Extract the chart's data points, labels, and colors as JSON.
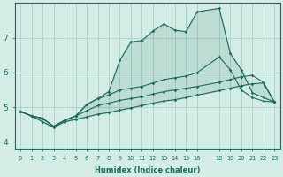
{
  "xlabel": "Humidex (Indice chaleur)",
  "ylabel": "",
  "bg_color": "#d4ece6",
  "grid_color": "#aacfc7",
  "line_color": "#1a6b5a",
  "xlim": [
    -0.5,
    23.5
  ],
  "ylim": [
    3.8,
    8.0
  ],
  "xticks": [
    0,
    1,
    2,
    3,
    4,
    5,
    6,
    7,
    8,
    9,
    10,
    11,
    12,
    13,
    14,
    15,
    16,
    18,
    19,
    20,
    21,
    22,
    23
  ],
  "yticks": [
    4,
    5,
    6,
    7
  ],
  "line_top_x": [
    0,
    1,
    2,
    3,
    4,
    5,
    6,
    7,
    8,
    9,
    10,
    11,
    12,
    13,
    14,
    15,
    16,
    18,
    19,
    20,
    21,
    22,
    23
  ],
  "line_top_y": [
    4.88,
    4.75,
    4.68,
    4.45,
    4.62,
    4.75,
    5.08,
    5.25,
    5.45,
    6.35,
    6.88,
    6.92,
    7.2,
    7.4,
    7.22,
    7.18,
    7.75,
    7.85,
    6.55,
    6.08,
    5.42,
    5.28,
    5.15
  ],
  "line_mid1_x": [
    0,
    1,
    2,
    3,
    4,
    5,
    6,
    7,
    8,
    9,
    10,
    11,
    12,
    13,
    14,
    15,
    16,
    18,
    19,
    20,
    21,
    22,
    23
  ],
  "line_mid1_y": [
    4.88,
    4.75,
    4.68,
    4.45,
    4.62,
    4.75,
    5.08,
    5.25,
    5.35,
    5.5,
    5.55,
    5.6,
    5.7,
    5.8,
    5.85,
    5.9,
    6.0,
    6.45,
    6.08,
    5.5,
    5.28,
    5.18,
    5.15
  ],
  "line_mid2_x": [
    0,
    1,
    2,
    3,
    4,
    5,
    6,
    7,
    8,
    9,
    10,
    11,
    12,
    13,
    14,
    15,
    16,
    18,
    19,
    20,
    21,
    22,
    23
  ],
  "line_mid2_y": [
    4.88,
    4.75,
    4.68,
    4.45,
    4.62,
    4.75,
    4.9,
    5.05,
    5.12,
    5.2,
    5.25,
    5.3,
    5.38,
    5.45,
    5.5,
    5.55,
    5.6,
    5.72,
    5.8,
    5.88,
    5.92,
    5.72,
    5.15
  ],
  "line_bot_x": [
    0,
    1,
    2,
    3,
    4,
    5,
    6,
    7,
    8,
    9,
    10,
    11,
    12,
    13,
    14,
    15,
    16,
    18,
    19,
    20,
    21,
    22,
    23
  ],
  "line_bot_y": [
    4.88,
    4.75,
    4.58,
    4.42,
    4.58,
    4.65,
    4.72,
    4.8,
    4.85,
    4.92,
    4.98,
    5.05,
    5.12,
    5.18,
    5.22,
    5.28,
    5.35,
    5.48,
    5.55,
    5.62,
    5.68,
    5.7,
    5.15
  ]
}
